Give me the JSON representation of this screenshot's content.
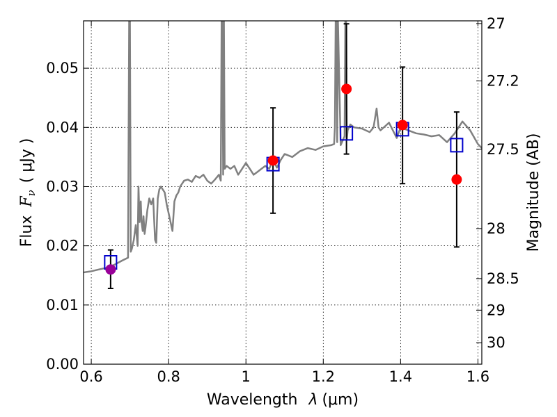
{
  "chart_data": {
    "type": "line",
    "xlabel_text": "Wavelength",
    "xlabel_symbol": "λ",
    "xlabel_unit": "(μm)",
    "ylabel_text": "Flux",
    "ylabel_symbol": "F",
    "ylabel_subscript": "ν",
    "ylabel_unit": "( μJy )",
    "y2label": "Magnitude (AB)",
    "xlim": [
      0.58,
      1.61
    ],
    "ylim": [
      0.0,
      0.058
    ],
    "grid": true,
    "xticks": [
      0.6,
      0.8,
      1.0,
      1.2,
      1.4,
      1.6
    ],
    "xtick_labels": [
      "0.6",
      "0.8",
      "1",
      "1.2",
      "1.4",
      "1.6"
    ],
    "yticks": [
      0.0,
      0.01,
      0.02,
      0.03,
      0.04,
      0.05
    ],
    "ytick_labels": [
      "0.00",
      "0.01",
      "0.02",
      "0.03",
      "0.04",
      "0.05"
    ],
    "y2ticks": [
      27,
      27.2,
      27.5,
      28,
      28.5,
      29,
      30
    ],
    "y2tick_labels": [
      "27",
      "27.2",
      "27.5",
      "28",
      "28.5",
      "29",
      "30"
    ],
    "colors": {
      "spectrum": "#808080",
      "model_box": "#0000cc",
      "observed": "#ff0000",
      "observed_special": "#990099",
      "errorbar": "#000000"
    },
    "spectrum": {
      "x": [
        0.58,
        0.6,
        0.62,
        0.64,
        0.66,
        0.68,
        0.695,
        0.698,
        0.7,
        0.702,
        0.705,
        0.71,
        0.715,
        0.72,
        0.722,
        0.725,
        0.728,
        0.73,
        0.733,
        0.735,
        0.738,
        0.74,
        0.745,
        0.75,
        0.755,
        0.76,
        0.765,
        0.768,
        0.772,
        0.776,
        0.78,
        0.785,
        0.79,
        0.795,
        0.8,
        0.805,
        0.81,
        0.815,
        0.82,
        0.825,
        0.83,
        0.835,
        0.84,
        0.85,
        0.86,
        0.87,
        0.88,
        0.89,
        0.9,
        0.91,
        0.92,
        0.93,
        0.935,
        0.937,
        0.939,
        0.941,
        0.943,
        0.945,
        0.95,
        0.96,
        0.97,
        0.98,
        0.99,
        1.0,
        1.01,
        1.02,
        1.03,
        1.04,
        1.05,
        1.06,
        1.07,
        1.08,
        1.09,
        1.1,
        1.12,
        1.14,
        1.16,
        1.18,
        1.2,
        1.22,
        1.228,
        1.23,
        1.232,
        1.234,
        1.236,
        1.238,
        1.245,
        1.255,
        1.257,
        1.259,
        1.261,
        1.263,
        1.27,
        1.28,
        1.3,
        1.32,
        1.33,
        1.338,
        1.343,
        1.348,
        1.36,
        1.37,
        1.38,
        1.39,
        1.4,
        1.42,
        1.44,
        1.46,
        1.48,
        1.5,
        1.52,
        1.54,
        1.56,
        1.58,
        1.6,
        1.61
      ],
      "y": [
        0.0155,
        0.0157,
        0.016,
        0.0163,
        0.0168,
        0.0175,
        0.018,
        0.058,
        0.058,
        0.019,
        0.0195,
        0.021,
        0.0235,
        0.02,
        0.03,
        0.024,
        0.0275,
        0.024,
        0.0225,
        0.025,
        0.022,
        0.023,
        0.026,
        0.028,
        0.027,
        0.028,
        0.021,
        0.0205,
        0.028,
        0.0295,
        0.03,
        0.0295,
        0.029,
        0.027,
        0.0255,
        0.024,
        0.0225,
        0.0275,
        0.0285,
        0.029,
        0.03,
        0.0305,
        0.031,
        0.0312,
        0.0308,
        0.0318,
        0.0315,
        0.032,
        0.031,
        0.0305,
        0.0312,
        0.032,
        0.031,
        0.058,
        0.058,
        0.032,
        0.058,
        0.033,
        0.0335,
        0.033,
        0.0335,
        0.032,
        0.033,
        0.034,
        0.033,
        0.032,
        0.0325,
        0.033,
        0.0335,
        0.033,
        0.0345,
        0.0332,
        0.0345,
        0.0355,
        0.035,
        0.036,
        0.0365,
        0.0362,
        0.0368,
        0.037,
        0.0372,
        0.04,
        0.058,
        0.058,
        0.0375,
        0.058,
        0.037,
        0.0385,
        0.058,
        0.058,
        0.038,
        0.0395,
        0.0405,
        0.04,
        0.0398,
        0.0392,
        0.04,
        0.0432,
        0.04,
        0.0395,
        0.0402,
        0.0408,
        0.0395,
        0.0382,
        0.04,
        0.0395,
        0.039,
        0.0388,
        0.0385,
        0.0387,
        0.0375,
        0.039,
        0.041,
        0.0395,
        0.0372,
        0.0365
      ]
    },
    "series": [
      {
        "marker": "box",
        "x": [
          0.65,
          1.07,
          1.26,
          1.405,
          1.545
        ],
        "values": [
          0.0172,
          0.0338,
          0.039,
          0.0397,
          0.037
        ]
      },
      {
        "marker": "point",
        "x": [
          0.65,
          1.07,
          1.26,
          1.405,
          1.545
        ],
        "values": [
          0.016,
          0.0344,
          0.0465,
          0.0404,
          0.0312
        ],
        "err_low": [
          0.0128,
          0.0255,
          0.0355,
          0.0305,
          0.0198
        ],
        "err_high": [
          0.0193,
          0.0433,
          0.0575,
          0.0502,
          0.0426
        ]
      }
    ]
  }
}
